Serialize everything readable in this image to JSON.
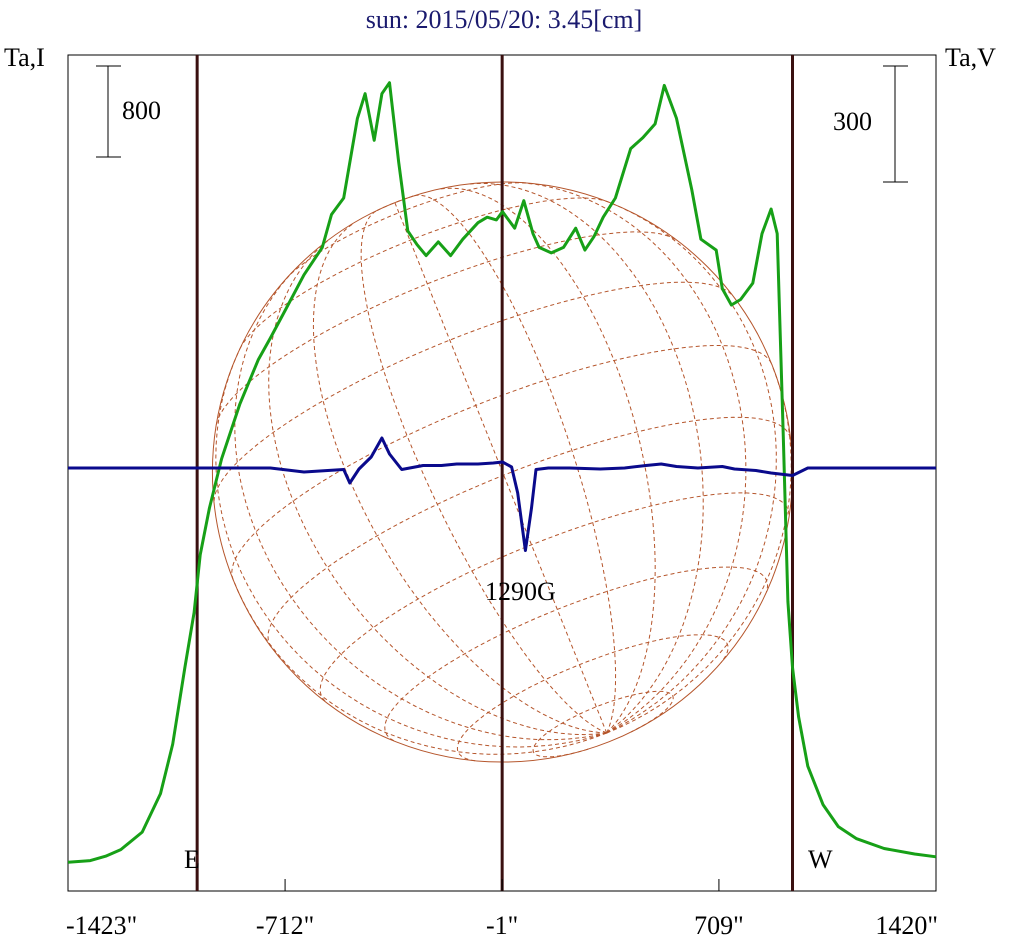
{
  "chart_data": {
    "type": "line",
    "title": "sun: 2015/05/20: 3.45[cm]",
    "left_axis_label": "Ta,I",
    "right_axis_label": "Ta,V",
    "left_scale_bar_label": "800",
    "right_scale_bar_label": "300",
    "east_label": "E",
    "west_label": "W",
    "annotation": "1290G",
    "x_ticks": [
      "-1423\"",
      "-712\"",
      "-1\"",
      "709\"",
      "1420\""
    ],
    "x_tick_values": [
      -1423,
      -712,
      -1,
      709,
      1420
    ],
    "xlim": [
      -1423,
      1420
    ],
    "vertical_lines": [
      -1000,
      -1,
      950
    ],
    "disk_radius": 950,
    "colors": {
      "intensity": "#17a017",
      "polarization": "#0a0a8c",
      "frame": "#000000",
      "markers": "#3a1010",
      "grid": "#b5552b",
      "title": "#1a1a6e"
    },
    "series": [
      {
        "name": "Ta,I",
        "axis": "left",
        "points": [
          [
            -1423,
            50
          ],
          [
            -1350,
            56
          ],
          [
            -1300,
            72
          ],
          [
            -1250,
            96
          ],
          [
            -1180,
            160
          ],
          [
            -1120,
            300
          ],
          [
            -1080,
            480
          ],
          [
            -1040,
            760
          ],
          [
            -1010,
            960
          ],
          [
            -990,
            1170
          ],
          [
            -960,
            1340
          ],
          [
            -920,
            1520
          ],
          [
            -860,
            1720
          ],
          [
            -800,
            1880
          ],
          [
            -760,
            1960
          ],
          [
            -712,
            2060
          ],
          [
            -650,
            2190
          ],
          [
            -590,
            2290
          ],
          [
            -560,
            2410
          ],
          [
            -520,
            2470
          ],
          [
            -475,
            2760
          ],
          [
            -450,
            2850
          ],
          [
            -420,
            2680
          ],
          [
            -395,
            2850
          ],
          [
            -370,
            2890
          ],
          [
            -340,
            2600
          ],
          [
            -310,
            2350
          ],
          [
            -280,
            2300
          ],
          [
            -250,
            2260
          ],
          [
            -210,
            2310
          ],
          [
            -170,
            2260
          ],
          [
            -130,
            2320
          ],
          [
            -80,
            2380
          ],
          [
            -50,
            2400
          ],
          [
            -20,
            2390
          ],
          [
            0,
            2420
          ],
          [
            40,
            2360
          ],
          [
            70,
            2460
          ],
          [
            100,
            2340
          ],
          [
            120,
            2290
          ],
          [
            160,
            2270
          ],
          [
            200,
            2290
          ],
          [
            240,
            2360
          ],
          [
            270,
            2280
          ],
          [
            300,
            2330
          ],
          [
            330,
            2400
          ],
          [
            370,
            2470
          ],
          [
            420,
            2650
          ],
          [
            460,
            2690
          ],
          [
            500,
            2740
          ],
          [
            530,
            2880
          ],
          [
            570,
            2760
          ],
          [
            620,
            2500
          ],
          [
            650,
            2320
          ],
          [
            700,
            2280
          ],
          [
            720,
            2140
          ],
          [
            750,
            2080
          ],
          [
            780,
            2100
          ],
          [
            820,
            2160
          ],
          [
            850,
            2340
          ],
          [
            880,
            2430
          ],
          [
            900,
            2340
          ],
          [
            920,
            1600
          ],
          [
            935,
            1000
          ],
          [
            950,
            760
          ],
          [
            970,
            580
          ],
          [
            1000,
            400
          ],
          [
            1050,
            260
          ],
          [
            1100,
            180
          ],
          [
            1160,
            136
          ],
          [
            1250,
            100
          ],
          [
            1350,
            80
          ],
          [
            1420,
            70
          ]
        ]
      },
      {
        "name": "Ta,V",
        "axis": "right",
        "points": [
          [
            -1423,
            0
          ],
          [
            -1200,
            0
          ],
          [
            -1000,
            0
          ],
          [
            -760,
            0
          ],
          [
            -650,
            -8
          ],
          [
            -520,
            -3
          ],
          [
            -500,
            -30
          ],
          [
            -470,
            -2
          ],
          [
            -430,
            22
          ],
          [
            -395,
            60
          ],
          [
            -370,
            28
          ],
          [
            -330,
            -3
          ],
          [
            -260,
            5
          ],
          [
            -200,
            5
          ],
          [
            -150,
            8
          ],
          [
            -80,
            8
          ],
          [
            -30,
            10
          ],
          [
            0,
            12
          ],
          [
            30,
            2
          ],
          [
            50,
            -50
          ],
          [
            75,
            -165
          ],
          [
            95,
            -80
          ],
          [
            110,
            -3
          ],
          [
            150,
            0
          ],
          [
            220,
            0
          ],
          [
            320,
            -2
          ],
          [
            400,
            0
          ],
          [
            470,
            5
          ],
          [
            520,
            8
          ],
          [
            570,
            3
          ],
          [
            640,
            0
          ],
          [
            720,
            3
          ],
          [
            760,
            -2
          ],
          [
            830,
            -5
          ],
          [
            880,
            -10
          ],
          [
            950,
            -15
          ],
          [
            1000,
            0
          ],
          [
            1200,
            0
          ],
          [
            1420,
            0
          ]
        ]
      }
    ]
  }
}
